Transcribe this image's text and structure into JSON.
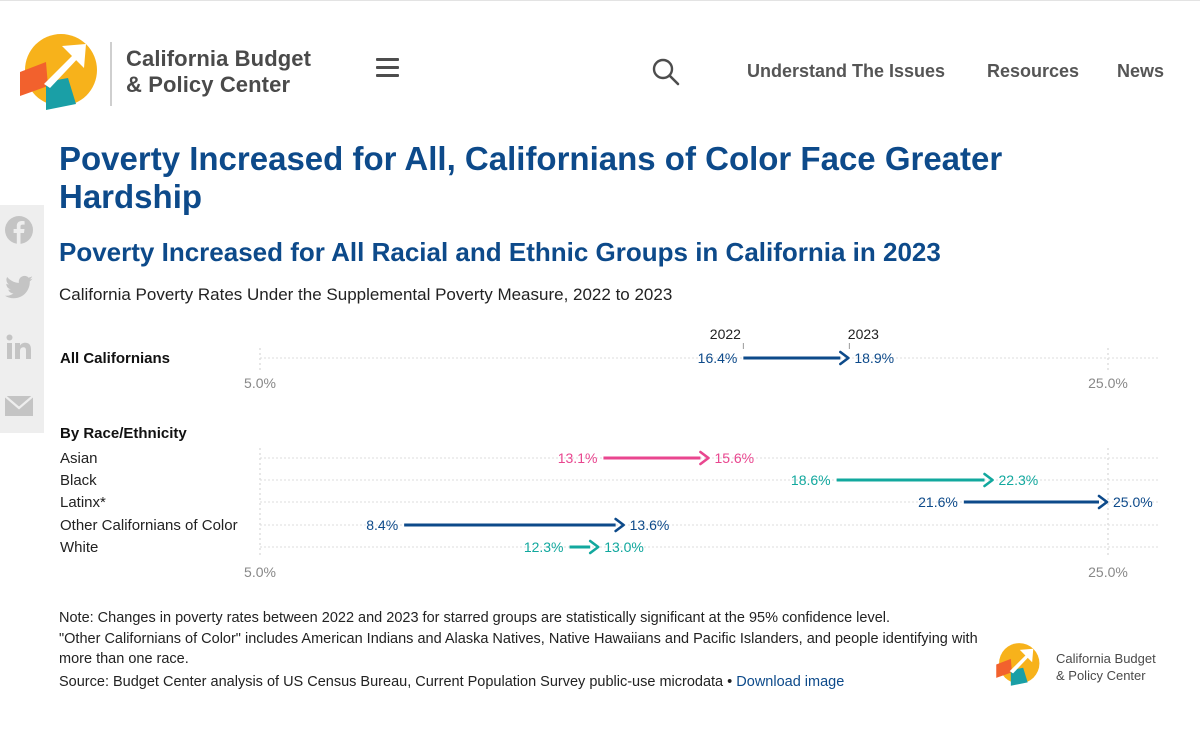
{
  "header": {
    "brand_line1": "California Budget",
    "brand_line2": "& Policy Center",
    "nav": [
      "Understand The Issues",
      "Resources",
      "News"
    ]
  },
  "icons": {
    "logo": "logo-icon",
    "menu": "hamburger-menu-icon",
    "search": "search-icon",
    "share": [
      "facebook-icon",
      "twitter-icon",
      "linkedin-icon",
      "email-icon"
    ]
  },
  "colors": {
    "heading": "#0d4a8a",
    "navy": "#0d4a8a",
    "pink": "#e9468f",
    "teal": "#12a89e",
    "logo_yellow": "#f7b21b",
    "logo_orange": "#f2612d",
    "logo_teal": "#1a9fa6"
  },
  "article": {
    "title": "Poverty Increased for All, Californians of Color Face Greater Hardship",
    "chart_title": "Poverty Increased for All Racial and Ethnic Groups in California in 2023",
    "chart_subtitle": "California Poverty Rates Under the Supplemental Poverty Measure, 2022 to 2023"
  },
  "chart_data": {
    "type": "dumbbell",
    "title": "Poverty Increased for All Racial and Ethnic Groups in California in 2023",
    "subtitle": "California Poverty Rates Under the Supplemental Poverty Measure, 2022 to 2023",
    "start_label": "2022",
    "end_label": "2023",
    "xlim": [
      5.0,
      25.0
    ],
    "tick_labels": [
      "5.0%",
      "25.0%"
    ],
    "groups": [
      {
        "name": "All Californians",
        "rows": [
          {
            "label": "All Californians",
            "start": 16.4,
            "end": 18.9,
            "start_text": "16.4%",
            "end_text": "18.9%",
            "color": "#0d4a8a"
          }
        ]
      },
      {
        "name": "By Race/Ethnicity",
        "rows": [
          {
            "label": "Asian",
            "start": 13.1,
            "end": 15.6,
            "start_text": "13.1%",
            "end_text": "15.6%",
            "color": "#e9468f"
          },
          {
            "label": "Black",
            "start": 18.6,
            "end": 22.3,
            "start_text": "18.6%",
            "end_text": "22.3%",
            "color": "#12a89e"
          },
          {
            "label": "Latinx*",
            "start": 21.6,
            "end": 25.0,
            "start_text": "21.6%",
            "end_text": "25.0%",
            "color": "#0d4a8a"
          },
          {
            "label": "Other Californians of Color",
            "start": 8.4,
            "end": 13.6,
            "start_text": "8.4%",
            "end_text": "13.6%",
            "color": "#0d4a8a"
          },
          {
            "label": "White",
            "start": 12.3,
            "end": 13.0,
            "start_text": "12.3%",
            "end_text": "13.0%",
            "color": "#12a89e"
          }
        ]
      }
    ]
  },
  "footer": {
    "note_line1": "Note: Changes in poverty rates between 2022 and 2023 for starred groups are statistically significant at the 95% confidence level.",
    "note_line2": "\"Other Californians of Color\" includes American Indians and Alaska Natives, Native Hawaiians and Pacific Islanders, and people identifying with more than one race.",
    "source": "Source: Budget Center analysis of US Census Bureau, Current Population Survey public-use microdata",
    "separator": "•",
    "download": "Download image"
  }
}
